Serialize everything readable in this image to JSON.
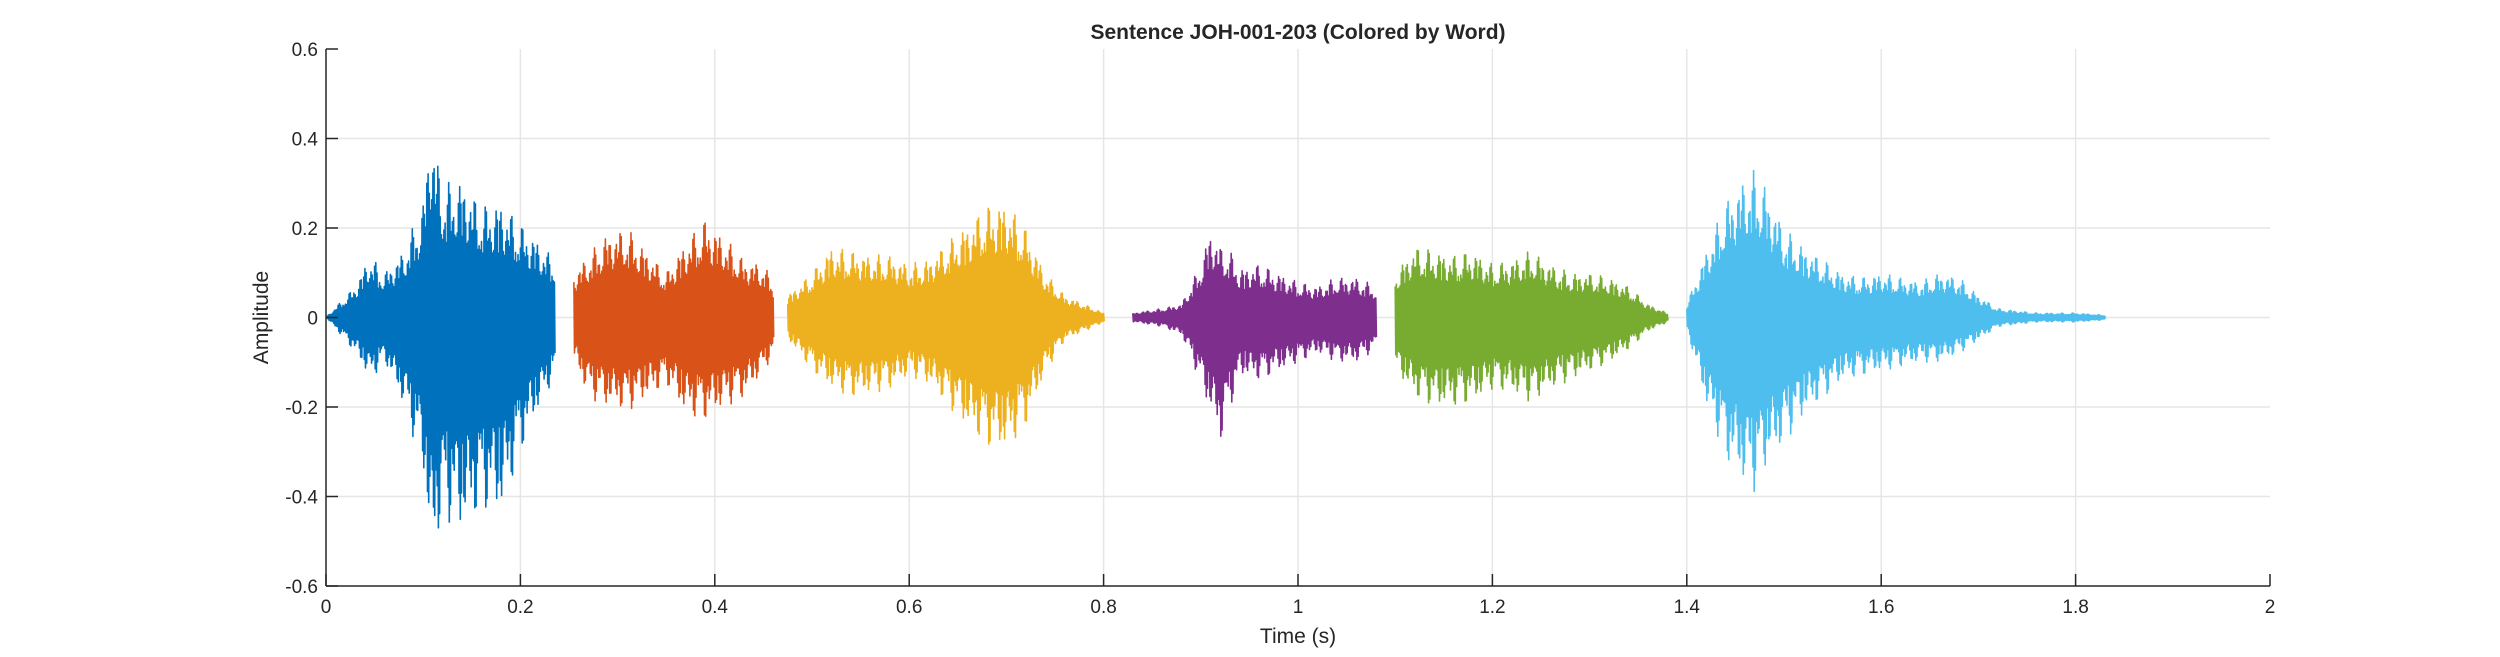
{
  "chart_data": {
    "type": "line",
    "title": "Sentence JOH-001-203 (Colored by Word)",
    "xlabel": "Time (s)",
    "ylabel": "Amplitude",
    "xlim": [
      0,
      2
    ],
    "ylim": [
      -0.6,
      0.6
    ],
    "xticks": [
      0,
      0.2,
      0.4,
      0.6,
      0.8,
      1,
      1.2,
      1.4,
      1.6,
      1.8,
      2
    ],
    "xtick_labels": [
      "0",
      "0.2",
      "0.4",
      "0.6",
      "0.8",
      "1",
      "1.2",
      "1.4",
      "1.6",
      "1.8",
      "2"
    ],
    "yticks": [
      -0.6,
      -0.4,
      -0.2,
      0,
      0.2,
      0.4,
      0.6
    ],
    "ytick_labels": [
      "-0.6",
      "-0.4",
      "-0.2",
      "0",
      "0.2",
      "0.4",
      "0.6"
    ],
    "grid": true,
    "series": [
      {
        "color": "#0072BD",
        "x": [
          0.0,
          0.03,
          0.045,
          0.06,
          0.08,
          0.1,
          0.107,
          0.12,
          0.14,
          0.16,
          0.18,
          0.2,
          0.215,
          0.235
        ],
        "upper": [
          0.0,
          0.07,
          0.14,
          0.1,
          0.15,
          0.26,
          0.44,
          0.3,
          0.31,
          0.25,
          0.26,
          0.21,
          0.18,
          0.13
        ],
        "lower": [
          0.0,
          -0.08,
          -0.14,
          -0.1,
          -0.2,
          -0.35,
          -0.56,
          -0.45,
          -0.48,
          -0.43,
          -0.44,
          -0.3,
          -0.22,
          -0.13
        ]
      },
      {
        "color": "#D95319",
        "x": [
          0.255,
          0.27,
          0.29,
          0.31,
          0.33,
          0.35,
          0.37,
          0.39,
          0.41,
          0.43,
          0.45,
          0.46
        ],
        "upper": [
          0.1,
          0.14,
          0.19,
          0.2,
          0.15,
          0.1,
          0.17,
          0.22,
          0.18,
          0.13,
          0.12,
          0.08
        ],
        "lower": [
          -0.1,
          -0.18,
          -0.2,
          -0.21,
          -0.18,
          -0.15,
          -0.22,
          -0.23,
          -0.2,
          -0.18,
          -0.12,
          -0.08
        ]
      },
      {
        "color": "#EDB120",
        "x": [
          0.475,
          0.5,
          0.52,
          0.54,
          0.56,
          0.58,
          0.6,
          0.62,
          0.64,
          0.66,
          0.68,
          0.7,
          0.72,
          0.74,
          0.76,
          0.78,
          0.8
        ],
        "upper": [
          0.05,
          0.1,
          0.16,
          0.15,
          0.14,
          0.14,
          0.12,
          0.13,
          0.17,
          0.21,
          0.25,
          0.26,
          0.2,
          0.1,
          0.05,
          0.03,
          0.01
        ],
        "lower": [
          -0.05,
          -0.12,
          -0.16,
          -0.18,
          -0.17,
          -0.16,
          -0.13,
          -0.15,
          -0.2,
          -0.25,
          -0.29,
          -0.3,
          -0.24,
          -0.12,
          -0.05,
          -0.03,
          -0.01
        ]
      },
      {
        "color": "#7E2F8E",
        "x": [
          0.83,
          0.86,
          0.88,
          0.9,
          0.91,
          0.92,
          0.93,
          0.94,
          0.96,
          0.98,
          1.0,
          1.02,
          1.04,
          1.06,
          1.08
        ],
        "upper": [
          0.01,
          0.02,
          0.03,
          0.12,
          0.2,
          0.16,
          0.15,
          0.11,
          0.12,
          0.1,
          0.08,
          0.07,
          0.09,
          0.09,
          0.07
        ],
        "lower": [
          -0.01,
          -0.02,
          -0.04,
          -0.15,
          -0.22,
          -0.28,
          -0.2,
          -0.13,
          -0.14,
          -0.12,
          -0.1,
          -0.08,
          -0.1,
          -0.1,
          -0.07
        ]
      },
      {
        "color": "#77AC30",
        "x": [
          1.1,
          1.12,
          1.14,
          1.16,
          1.18,
          1.2,
          1.22,
          1.24,
          1.26,
          1.28,
          1.3,
          1.32,
          1.34,
          1.36,
          1.38
        ],
        "upper": [
          0.1,
          0.16,
          0.15,
          0.14,
          0.15,
          0.12,
          0.13,
          0.15,
          0.12,
          0.1,
          0.1,
          0.09,
          0.07,
          0.03,
          0.01
        ],
        "lower": [
          -0.12,
          -0.18,
          -0.2,
          -0.2,
          -0.19,
          -0.16,
          -0.17,
          -0.19,
          -0.16,
          -0.14,
          -0.12,
          -0.1,
          -0.07,
          -0.03,
          -0.01
        ]
      },
      {
        "color": "#4DBEEE",
        "x": [
          1.4,
          1.42,
          1.44,
          1.46,
          1.47,
          1.48,
          1.5,
          1.52,
          1.54,
          1.56,
          1.58,
          1.6,
          1.62,
          1.64,
          1.66,
          1.68,
          1.7,
          1.72,
          1.76,
          1.8,
          1.83
        ],
        "upper": [
          0.03,
          0.15,
          0.26,
          0.32,
          0.33,
          0.3,
          0.2,
          0.16,
          0.13,
          0.1,
          0.09,
          0.1,
          0.09,
          0.08,
          0.1,
          0.09,
          0.05,
          0.02,
          0.01,
          0.01,
          0.005
        ],
        "lower": [
          -0.03,
          -0.2,
          -0.32,
          -0.38,
          -0.39,
          -0.34,
          -0.28,
          -0.22,
          -0.18,
          -0.14,
          -0.13,
          -0.12,
          -0.11,
          -0.1,
          -0.1,
          -0.08,
          -0.05,
          -0.02,
          -0.01,
          -0.01,
          -0.005
        ]
      }
    ]
  }
}
